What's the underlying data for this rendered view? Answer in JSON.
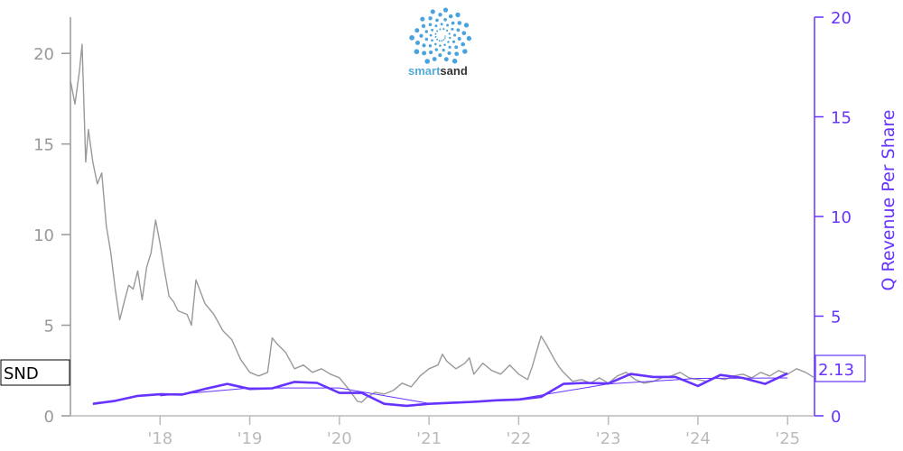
{
  "logo": {
    "text_a": "smart",
    "text_b": "sand"
  },
  "colors": {
    "price": "#999999",
    "revenue": "#6633ff",
    "axis": "#999999",
    "x_tick": "#bbbbbb"
  },
  "chart_data": {
    "type": "line",
    "title": "",
    "ticker": "SND",
    "last_value_label": "2.13",
    "xlabel": "",
    "ylabel_left": "",
    "ylabel_right": "Q Revenue Per Share",
    "x_ticks": [
      "'18",
      "'19",
      "'20",
      "'21",
      "'22",
      "'23",
      "'24",
      "'25"
    ],
    "x_range": [
      2017.0,
      2025.3
    ],
    "ylim_left": [
      0,
      22
    ],
    "ylim_right": [
      0,
      20
    ],
    "y_ticks_left": [
      0,
      5,
      10,
      15,
      20
    ],
    "y_ticks_right": [
      0,
      5,
      10,
      15,
      20
    ],
    "grid": false,
    "series": [
      {
        "name": "SND",
        "axis": "left",
        "color": "#999999",
        "x": [
          2017.0,
          2017.05,
          2017.1,
          2017.13,
          2017.17,
          2017.2,
          2017.25,
          2017.3,
          2017.35,
          2017.4,
          2017.45,
          2017.5,
          2017.55,
          2017.6,
          2017.65,
          2017.7,
          2017.75,
          2017.8,
          2017.85,
          2017.9,
          2017.95,
          2018.0,
          2018.05,
          2018.1,
          2018.15,
          2018.2,
          2018.3,
          2018.35,
          2018.4,
          2018.5,
          2018.6,
          2018.7,
          2018.8,
          2018.9,
          2019.0,
          2019.1,
          2019.2,
          2019.25,
          2019.3,
          2019.4,
          2019.5,
          2019.6,
          2019.7,
          2019.8,
          2019.9,
          2020.0,
          2020.1,
          2020.2,
          2020.25,
          2020.3,
          2020.4,
          2020.5,
          2020.6,
          2020.7,
          2020.8,
          2020.9,
          2021.0,
          2021.1,
          2021.15,
          2021.2,
          2021.3,
          2021.4,
          2021.45,
          2021.5,
          2021.6,
          2021.7,
          2021.8,
          2021.9,
          2022.0,
          2022.1,
          2022.15,
          2022.25,
          2022.3,
          2022.4,
          2022.45,
          2022.5,
          2022.6,
          2022.7,
          2022.8,
          2022.9,
          2023.0,
          2023.1,
          2023.2,
          2023.3,
          2023.4,
          2023.5,
          2023.6,
          2023.7,
          2023.8,
          2023.9,
          2024.0,
          2024.1,
          2024.2,
          2024.3,
          2024.4,
          2024.5,
          2024.6,
          2024.7,
          2024.8,
          2024.9,
          2025.0,
          2025.1,
          2025.2,
          2025.3
        ],
        "values": [
          18.5,
          17.2,
          19.0,
          20.5,
          14.0,
          15.8,
          14.0,
          12.8,
          13.4,
          10.5,
          9.0,
          7.0,
          5.3,
          6.3,
          7.2,
          7.0,
          8.0,
          6.4,
          8.2,
          9.0,
          10.8,
          9.5,
          8.0,
          6.6,
          6.3,
          5.8,
          5.6,
          5.0,
          7.5,
          6.2,
          5.6,
          4.7,
          4.2,
          3.1,
          2.4,
          2.2,
          2.4,
          4.3,
          4.0,
          3.5,
          2.6,
          2.8,
          2.4,
          2.6,
          2.3,
          2.1,
          1.5,
          0.8,
          0.75,
          1.0,
          1.3,
          1.2,
          1.4,
          1.8,
          1.6,
          2.2,
          2.6,
          2.8,
          3.4,
          3.0,
          2.6,
          2.9,
          3.2,
          2.3,
          2.9,
          2.5,
          2.3,
          2.8,
          2.3,
          2.0,
          2.7,
          4.4,
          4.0,
          3.1,
          2.7,
          2.4,
          1.9,
          2.0,
          1.8,
          2.1,
          1.8,
          2.2,
          2.4,
          2.0,
          1.8,
          1.9,
          2.1,
          2.2,
          2.4,
          2.1,
          2.0,
          1.9,
          2.1,
          2.0,
          2.2,
          2.3,
          2.1,
          2.4,
          2.2,
          2.5,
          2.3,
          2.6,
          2.4,
          2.1
        ]
      },
      {
        "name": "Q Revenue Per Share",
        "axis": "right",
        "color": "#6633ff",
        "x": [
          2017.25,
          2017.5,
          2017.75,
          2018.0,
          2018.25,
          2018.5,
          2018.75,
          2019.0,
          2019.25,
          2019.5,
          2019.75,
          2020.0,
          2020.25,
          2020.5,
          2020.75,
          2021.0,
          2021.25,
          2021.5,
          2021.75,
          2022.0,
          2022.25,
          2022.5,
          2022.75,
          2023.0,
          2023.25,
          2023.5,
          2023.75,
          2024.0,
          2024.25,
          2024.5,
          2024.75,
          2025.0
        ],
        "values": [
          0.6,
          0.75,
          1.0,
          1.08,
          1.07,
          1.35,
          1.6,
          1.35,
          1.38,
          1.7,
          1.65,
          1.15,
          1.15,
          0.6,
          0.5,
          0.6,
          0.65,
          0.7,
          0.78,
          0.82,
          0.95,
          1.6,
          1.65,
          1.62,
          2.1,
          1.95,
          1.95,
          1.5,
          2.05,
          1.9,
          1.6,
          2.13
        ]
      },
      {
        "name": "Q Revenue Per Share (trailing average)",
        "axis": "right",
        "color": "#6633ff",
        "x": [
          2018.0,
          2019.0,
          2020.0,
          2021.0,
          2022.0,
          2023.0,
          2024.0,
          2025.0
        ],
        "values": [
          1.0,
          1.4,
          1.4,
          0.62,
          0.85,
          1.6,
          1.88,
          1.9
        ]
      }
    ]
  }
}
